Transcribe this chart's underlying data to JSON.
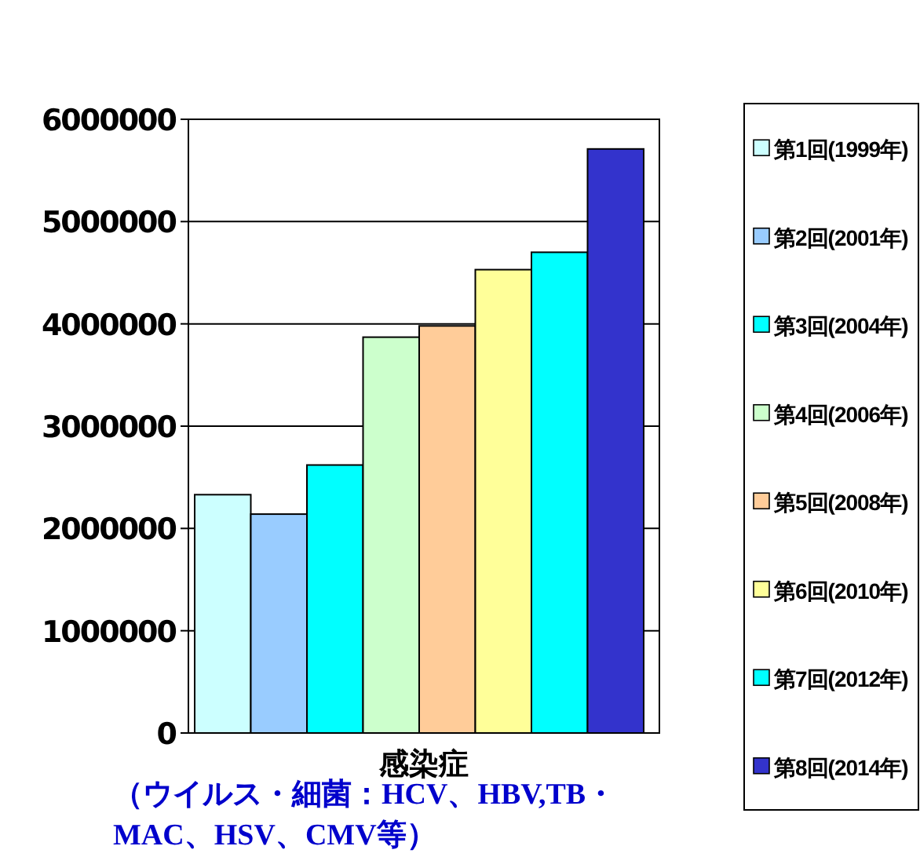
{
  "chart_data": {
    "type": "bar",
    "categories": [
      null
    ],
    "xlabel": "感染症",
    "series": [
      {
        "name": "第1回(1999年)",
        "color": "#ccffff",
        "values": [
          2330000
        ]
      },
      {
        "name": "第2回(2001年)",
        "color": "#99ccff",
        "values": [
          2140000
        ]
      },
      {
        "name": "第3回(2004年)",
        "color": "#00ffff",
        "values": [
          2620000
        ]
      },
      {
        "name": "第4回(2006年)",
        "color": "#ccffcc",
        "values": [
          3870000
        ]
      },
      {
        "name": "第5回(2008年)",
        "color": "#ffcc99",
        "values": [
          3980000
        ]
      },
      {
        "name": "第6回(2010年)",
        "color": "#ffff99",
        "values": [
          4530000
        ]
      },
      {
        "name": "第7回(2012年)",
        "color": "#00ffff",
        "values": [
          4700000
        ]
      },
      {
        "name": "第8回(2014年)",
        "color": "#3333cc",
        "values": [
          5710000
        ]
      }
    ],
    "ylim": [
      0,
      6000000
    ],
    "yticks": [
      0,
      1000000,
      2000000,
      3000000,
      4000000,
      5000000,
      6000000
    ],
    "grid": "y",
    "legend": "right",
    "annotations": [
      "（ウイルス・細菌：HCV、HBV,TB・MAC、HSV、CMV等）"
    ]
  }
}
